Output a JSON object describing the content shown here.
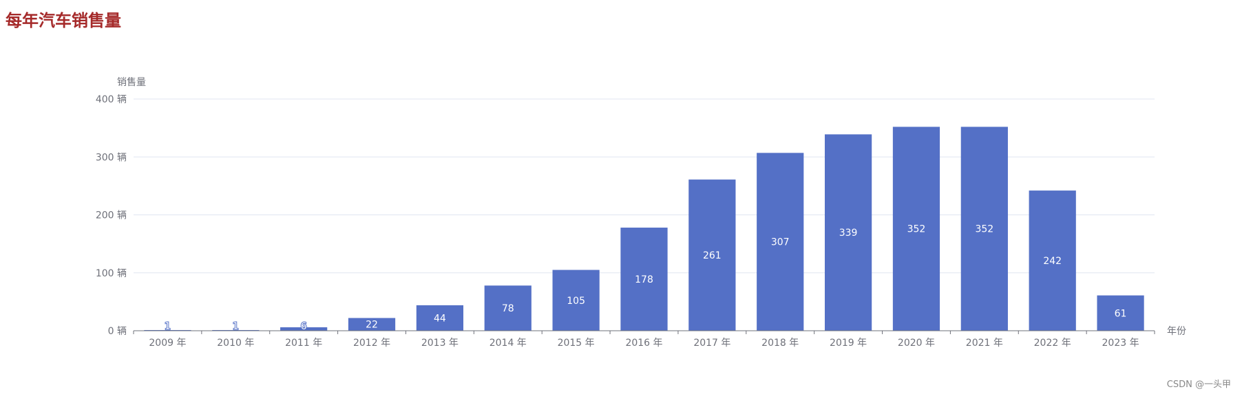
{
  "title": "每年汽车销售量",
  "watermark": "CSDN @一头甲",
  "colors": {
    "title": "#a52a2a",
    "bar": "#5470c6",
    "axis_text": "#6e7079",
    "grid": "#e0e6f1",
    "bar_label": "#ffffff"
  },
  "chart_data": {
    "type": "bar",
    "categories": [
      "2009 年",
      "2010 年",
      "2011 年",
      "2012 年",
      "2013 年",
      "2014 年",
      "2015 年",
      "2016 年",
      "2017 年",
      "2018 年",
      "2019 年",
      "2020 年",
      "2021 年",
      "2022 年",
      "2023 年"
    ],
    "values": [
      1,
      1,
      6,
      22,
      44,
      78,
      105,
      178,
      261,
      307,
      339,
      352,
      352,
      242,
      61
    ],
    "xlabel": "年份",
    "ylabel": "销售量",
    "ylim": [
      0,
      400
    ],
    "yticks": [
      0,
      100,
      200,
      300,
      400
    ],
    "ytick_suffix": " 辆",
    "grid": true,
    "data_labels": "inside"
  }
}
